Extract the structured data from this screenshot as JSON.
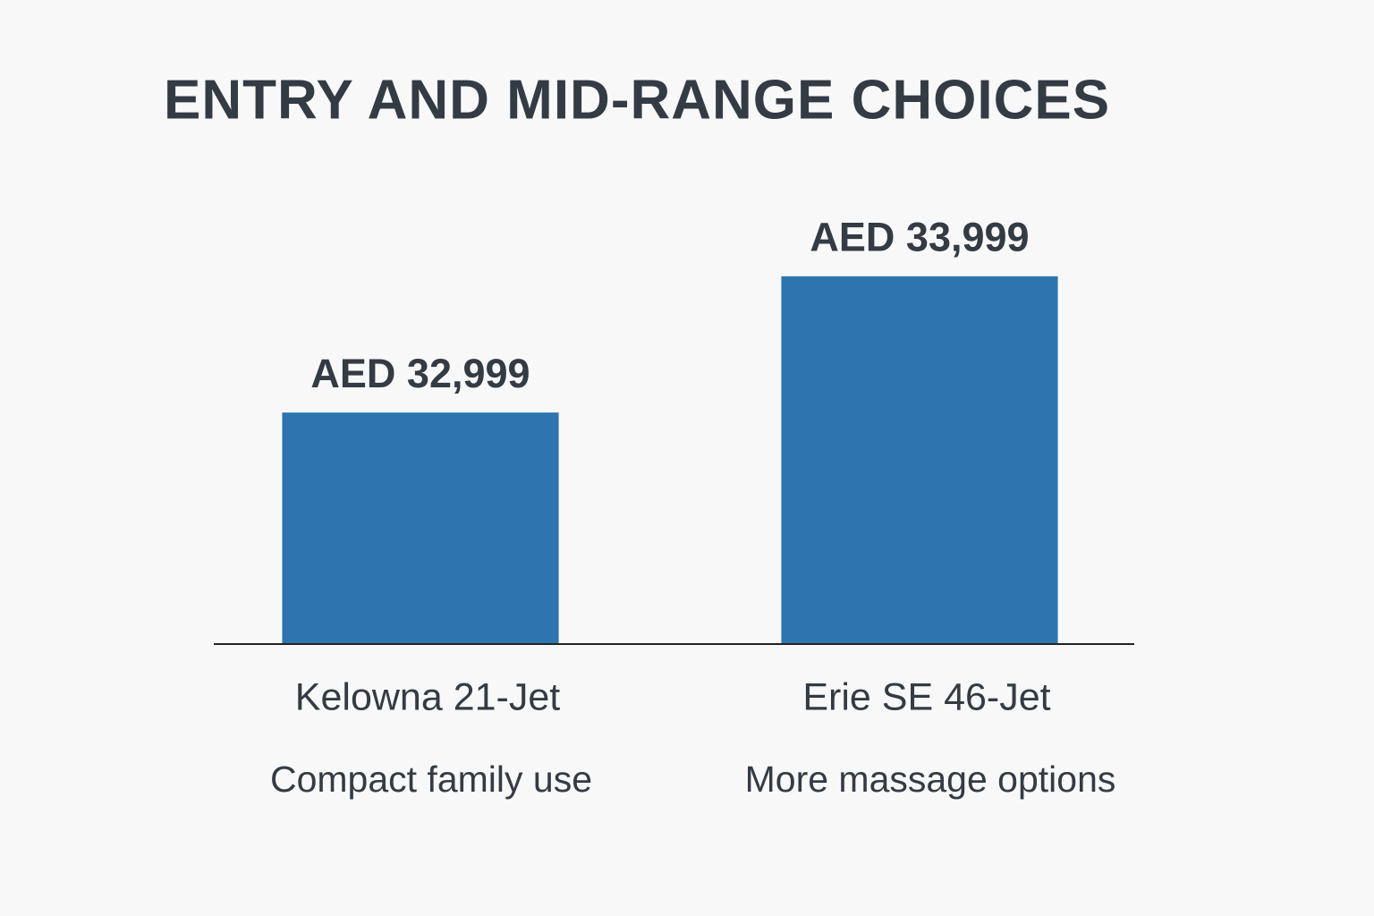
{
  "chart_data": {
    "type": "bar",
    "title": "ENTRY AND MID-RANGE CHOICES",
    "categories": [
      "Kelowna 21-Jet",
      "Erie SE 46-Jet"
    ],
    "descriptions": [
      "Compact family use",
      "More massage options"
    ],
    "values": [
      32999,
      33999
    ],
    "value_labels": [
      "AED 32,999",
      "AED 33,999"
    ],
    "color": "#2e75b0",
    "ylim": [
      31300,
      34300
    ]
  }
}
